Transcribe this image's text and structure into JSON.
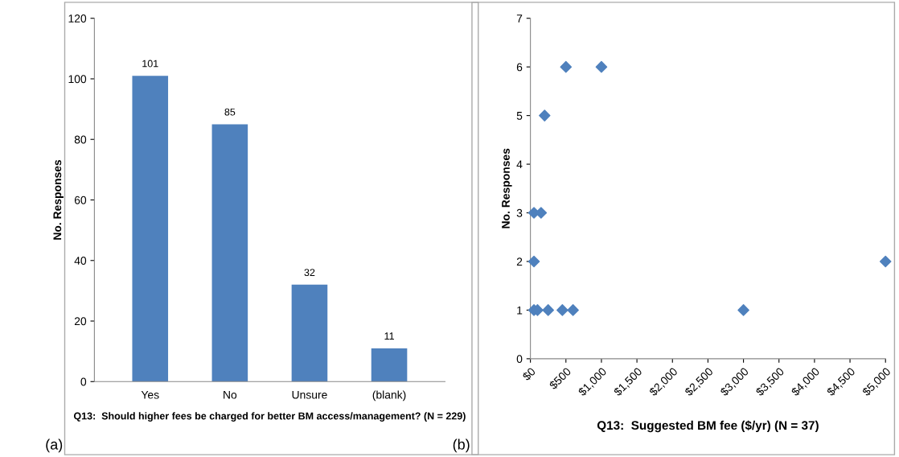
{
  "chart_data": [
    {
      "type": "bar",
      "xlabel": "Q13:  Should higher fees be charged for better BM access/management? (N = 229)",
      "ylabel": "No. Responses",
      "categories": [
        "Yes",
        "No",
        "Unsure",
        "(blank)"
      ],
      "values": [
        101,
        85,
        32,
        11
      ],
      "color": "#4f81bd",
      "ylim": [
        0,
        120
      ],
      "yticks": [
        0,
        20,
        40,
        60,
        80,
        100,
        120
      ],
      "data_labels": true,
      "grid": false,
      "legend": false,
      "annotations": [
        "(a)"
      ]
    },
    {
      "type": "scatter",
      "xlabel": "Q13:  Suggested BM fee ($/yr) (N = 37)",
      "ylabel": "No. Responses",
      "series": [
        {
          "color": "#4f81bd",
          "x": [
            500,
            1000,
            200,
            50,
            100,
            150,
            50,
            50,
            100,
            250,
            450,
            600,
            3000,
            5000
          ],
          "values": [
            6,
            6,
            5,
            3,
            null,
            3,
            2,
            1,
            1,
            1,
            1,
            1,
            1,
            2
          ]
        }
      ],
      "marker": "diamond",
      "xlim": [
        0,
        5000
      ],
      "xticks": [
        {
          "value": 0,
          "label": "$0"
        },
        {
          "value": 500,
          "label": "$500"
        },
        {
          "value": 1000,
          "label": "$1,000"
        },
        {
          "value": 1500,
          "label": "$1,500"
        },
        {
          "value": 2000,
          "label": "$2,000"
        },
        {
          "value": 2500,
          "label": "$2,500"
        },
        {
          "value": 3000,
          "label": "$3,000"
        },
        {
          "value": 3500,
          "label": "$3,500"
        },
        {
          "value": 4000,
          "label": "$4,000"
        },
        {
          "value": 4500,
          "label": "$4,500"
        },
        {
          "value": 5000,
          "label": "$5,000"
        }
      ],
      "ylim": [
        0,
        7
      ],
      "yticks": [
        0,
        1,
        2,
        3,
        4,
        5,
        6,
        7
      ],
      "grid": false,
      "legend": false,
      "annotations": [
        "(b)"
      ]
    }
  ]
}
